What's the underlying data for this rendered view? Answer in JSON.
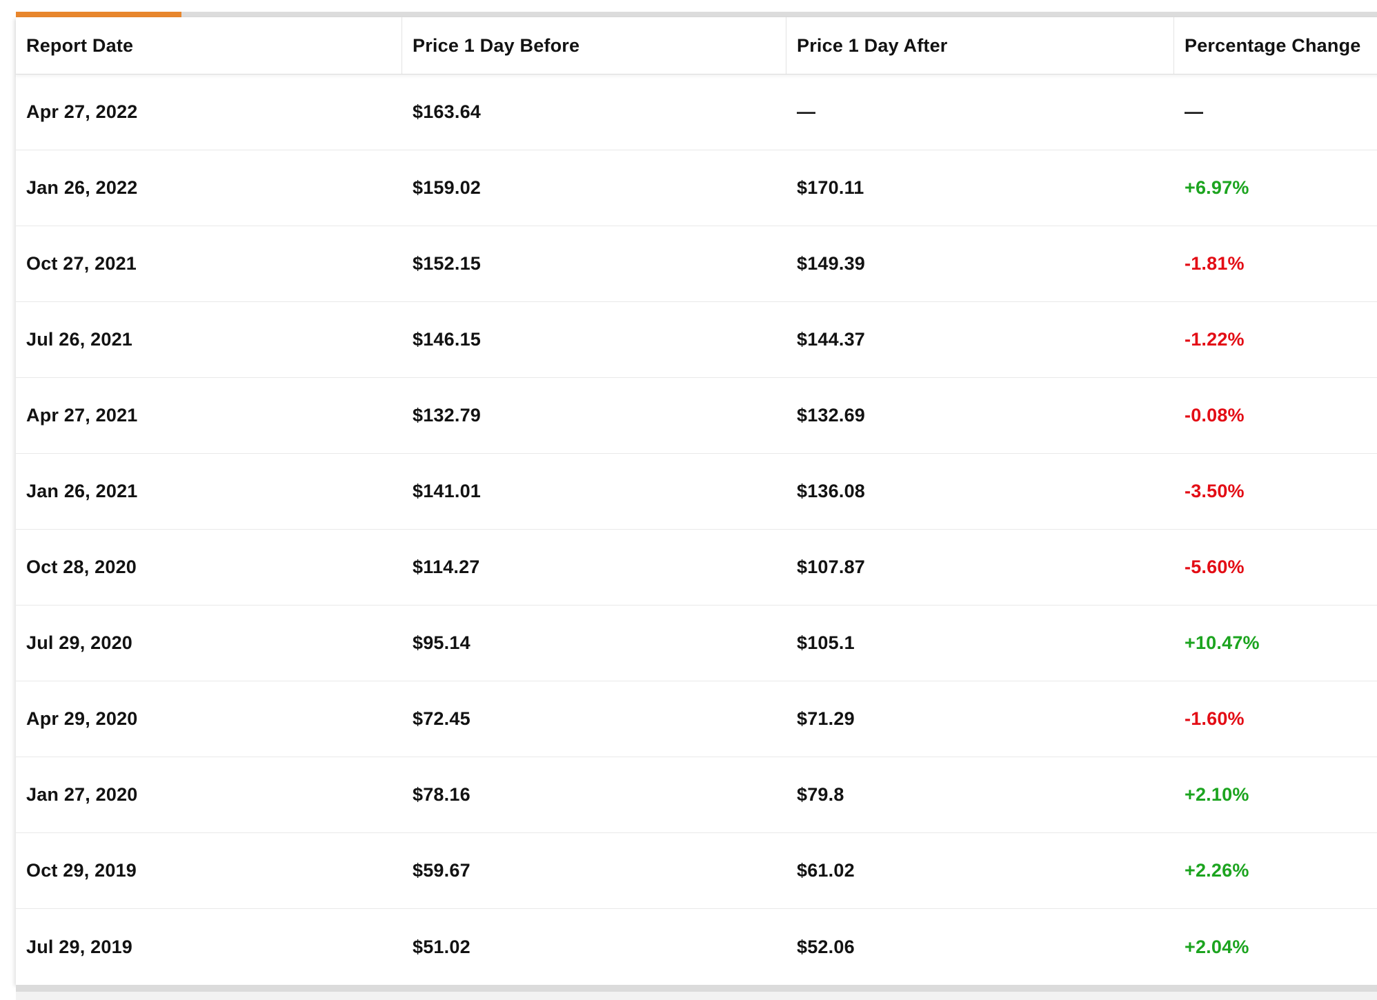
{
  "scrollbar": {
    "thumb_color": "#e8862c",
    "track_color": "#dcdcdc"
  },
  "palette": {
    "positive": "#1ca41f",
    "negative": "#e30d15",
    "text": "#121212"
  },
  "table": {
    "columns": [
      "Report Date",
      "Price 1 Day Before",
      "Price 1 Day After",
      "Percentage Change"
    ],
    "rows": [
      {
        "date": "Apr 27, 2022",
        "before": "$163.64",
        "after": "—",
        "change": "—"
      },
      {
        "date": "Jan 26, 2022",
        "before": "$159.02",
        "after": "$170.11",
        "change": "+6.97%"
      },
      {
        "date": "Oct 27, 2021",
        "before": "$152.15",
        "after": "$149.39",
        "change": "-1.81%"
      },
      {
        "date": "Jul 26, 2021",
        "before": "$146.15",
        "after": "$144.37",
        "change": "-1.22%"
      },
      {
        "date": "Apr 27, 2021",
        "before": "$132.79",
        "after": "$132.69",
        "change": "-0.08%"
      },
      {
        "date": "Jan 26, 2021",
        "before": "$141.01",
        "after": "$136.08",
        "change": "-3.50%"
      },
      {
        "date": "Oct 28, 2020",
        "before": "$114.27",
        "after": "$107.87",
        "change": "-5.60%"
      },
      {
        "date": "Jul 29, 2020",
        "before": "$95.14",
        "after": "$105.1",
        "change": "+10.47%"
      },
      {
        "date": "Apr 29, 2020",
        "before": "$72.45",
        "after": "$71.29",
        "change": "-1.60%"
      },
      {
        "date": "Jan 27, 2020",
        "before": "$78.16",
        "after": "$79.8",
        "change": "+2.10%"
      },
      {
        "date": "Oct 29, 2019",
        "before": "$59.67",
        "after": "$61.02",
        "change": "+2.26%"
      },
      {
        "date": "Jul 29, 2019",
        "before": "$51.02",
        "after": "$52.06",
        "change": "+2.04%"
      }
    ]
  }
}
